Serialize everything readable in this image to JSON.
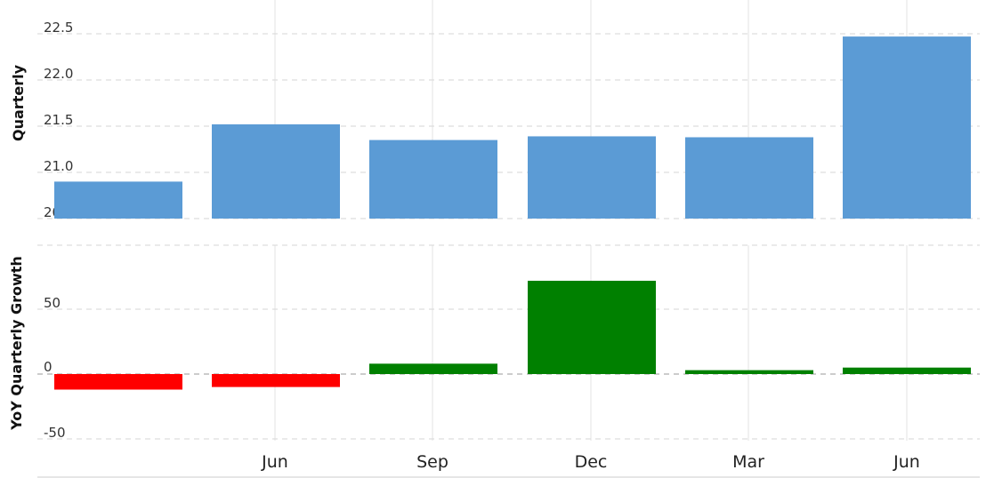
{
  "chart_data": [
    {
      "type": "bar",
      "ylabel": "Quarterly",
      "categories": [
        "",
        "Jun",
        "Sep",
        "Dec",
        "Mar",
        "Jun"
      ],
      "values": [
        20.9,
        21.52,
        21.35,
        21.39,
        21.38,
        22.47
      ],
      "ylim": [
        20.5,
        22.5
      ],
      "yticks": [
        "20.5",
        "21.0",
        "21.5",
        "22.0",
        "22.5"
      ],
      "bar_color": "#5b9bd5",
      "grid": true
    },
    {
      "type": "bar",
      "ylabel": "YoY Quarterly Growth",
      "categories": [
        "",
        "Jun",
        "Sep",
        "Dec",
        "Mar",
        "Jun"
      ],
      "values": [
        -12,
        -10,
        8,
        72,
        3,
        5
      ],
      "ylim": [
        -50,
        50
      ],
      "yticks": [
        "-50",
        "0",
        "50"
      ],
      "positive_color": "#008000",
      "negative_color": "#ff0000",
      "grid": true
    }
  ],
  "x_tick_labels": [
    "Jun",
    "Sep",
    "Dec",
    "Mar",
    "Jun"
  ]
}
